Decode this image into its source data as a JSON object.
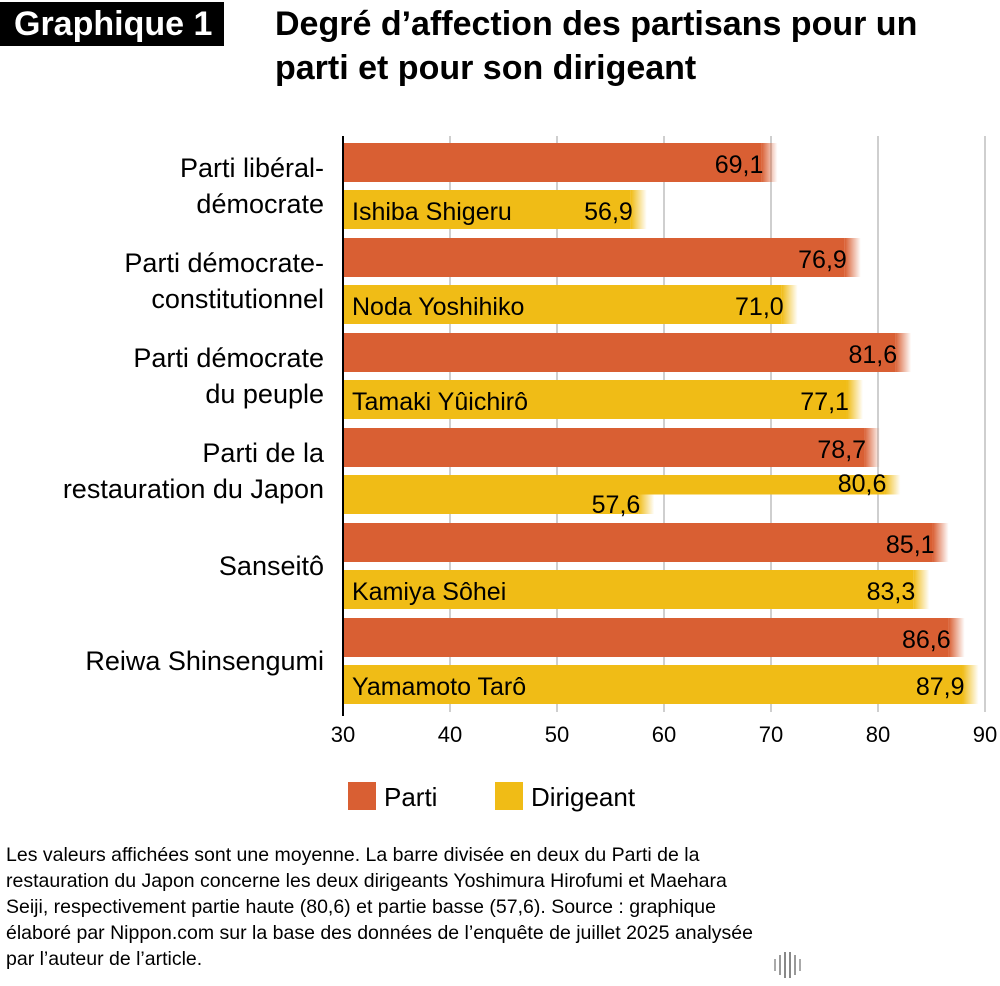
{
  "header": {
    "badge": "Graphique 1",
    "title": "Degré d’affection des partisans pour un parti et pour son dirigeant"
  },
  "chart_data": {
    "type": "bar",
    "orientation": "horizontal",
    "categories": [
      [
        "Parti libéral-",
        "démocrate"
      ],
      [
        "Parti démocrate-",
        "constitutionnel"
      ],
      [
        "Parti démocrate",
        "du peuple"
      ],
      [
        "Parti de la",
        "restauration du Japon"
      ],
      [
        "Sanseitô"
      ],
      [
        "Reiwa Shinsengumi"
      ]
    ],
    "leaders": [
      "Ishiba Shigeru",
      "Noda Yoshihiko",
      "Tamaki Yûichirô",
      "",
      "Kamiya Sôhei",
      "Yamamoto Tarô"
    ],
    "series": [
      {
        "name": "Parti",
        "color": "#d95f33",
        "values": [
          69.1,
          76.9,
          81.6,
          78.7,
          85.1,
          86.6
        ],
        "labels": [
          "69,1",
          "76,9",
          "81,6",
          "78,7",
          "85,1",
          "86,6"
        ]
      },
      {
        "name": "Dirigeant",
        "color": "#f0bc16",
        "values": [
          56.9,
          71.0,
          77.1,
          [
            80.6,
            57.6
          ],
          83.3,
          87.9
        ],
        "labels": [
          "56,9",
          "71,0",
          "77,1",
          [
            "80,6",
            "57,6"
          ],
          "83,3",
          "87,9"
        ]
      }
    ],
    "xlim": [
      30,
      90
    ],
    "xticks": [
      30,
      40,
      50,
      60,
      70,
      80,
      90
    ],
    "grid": true,
    "legend": "bottom"
  },
  "note": "Les valeurs affichées sont une moyenne. La barre divisée en deux du Parti de la restauration du Japon concerne les deux dirigeants Yoshimura Hirofumi et Maehara Seiji, respectivement partie haute (80,6) et partie basse (57,6). Source : graphique élaboré par Nippon.com sur la base des données de l’enquête de juillet 2025 analysée par l’auteur de l’article.",
  "logo": {
    "name": "nippon",
    "dot": ".",
    "suffix": "com"
  }
}
